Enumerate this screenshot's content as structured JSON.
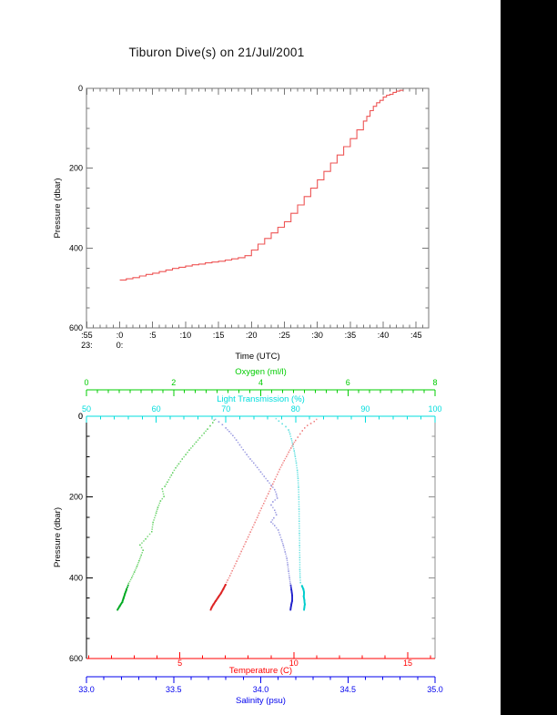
{
  "title": "Tiburon Dive(s) on 21/Jul/2001",
  "colors": {
    "background": "#ffffff",
    "right_band": "#000000",
    "frame": "#777777",
    "right_spine": "#909090",
    "text": "#000000",
    "profile_line": "#ee5555",
    "oxygen_text": "#00cc00",
    "oxygen_dot": "#55cc55",
    "oxygen_dark": "#00aa22",
    "transmission_text": "#00dddd",
    "transmission_dot": "#55dddd",
    "transmission_dark": "#00cccc",
    "temperature_text": "#ff0000",
    "temperature_dot": "#ee7777",
    "temperature_dark": "#dd2222",
    "salinity_text": "#0000ee",
    "salinity_dot": "#9090dd",
    "salinity_dark": "#2222cc"
  },
  "chart_data": [
    {
      "type": "line",
      "name": "dive-pressure-vs-time",
      "xlabel": "Time (UTC)",
      "ylabel": "Pressure (dbar)",
      "xlim": [
        -5.05,
        46.9
      ],
      "ylim": [
        0,
        600
      ],
      "x_ticks": [
        {
          "minute": -5,
          "label": ":55"
        },
        {
          "minute": 0,
          "label": ":0"
        },
        {
          "minute": 5,
          "label": ":5"
        },
        {
          "minute": 10,
          "label": ":10"
        },
        {
          "minute": 15,
          "label": ":15"
        },
        {
          "minute": 20,
          "label": ":20"
        },
        {
          "minute": 25,
          "label": ":25"
        },
        {
          "minute": 30,
          "label": ":30"
        },
        {
          "minute": 35,
          "label": ":35"
        },
        {
          "minute": 40,
          "label": ":40"
        },
        {
          "minute": 45,
          "label": ":45"
        }
      ],
      "x_hour_labels": [
        {
          "minute": -5,
          "label": "23:"
        },
        {
          "minute": 0,
          "label": "0:"
        }
      ],
      "x_minor_step": 1,
      "y_ticks": [
        {
          "value": 0,
          "label": "0"
        },
        {
          "value": 200,
          "label": "200"
        },
        {
          "value": 400,
          "label": "400"
        },
        {
          "value": 600,
          "label": "600"
        }
      ],
      "y_minor_step": 50,
      "series": [
        {
          "name": "pressure-profile",
          "style": "steps",
          "points_time_pressure": [
            [
              0,
              480
            ],
            [
              1,
              477
            ],
            [
              2,
              474
            ],
            [
              3,
              470
            ],
            [
              4,
              466
            ],
            [
              5,
              463
            ],
            [
              6,
              459
            ],
            [
              7,
              455
            ],
            [
              8,
              451
            ],
            [
              9,
              448
            ],
            [
              10,
              445
            ],
            [
              11,
              442
            ],
            [
              12,
              440
            ],
            [
              13,
              437
            ],
            [
              14,
              435
            ],
            [
              15,
              433
            ],
            [
              16,
              430
            ],
            [
              17,
              427
            ],
            [
              18,
              424
            ],
            [
              19,
              419
            ],
            [
              20,
              405
            ],
            [
              21,
              390
            ],
            [
              22,
              376
            ],
            [
              23,
              362
            ],
            [
              24,
              348
            ],
            [
              25,
              334
            ],
            [
              26,
              313
            ],
            [
              27,
              292
            ],
            [
              28,
              271
            ],
            [
              29,
              250
            ],
            [
              30,
              229
            ],
            [
              31,
              208
            ],
            [
              32,
              187
            ],
            [
              33,
              167
            ],
            [
              34,
              146
            ],
            [
              35,
              126
            ],
            [
              36,
              104
            ],
            [
              37,
              82
            ],
            [
              37.5,
              70
            ],
            [
              38,
              56
            ],
            [
              38.5,
              45
            ],
            [
              39,
              36
            ],
            [
              39.5,
              30
            ],
            [
              40,
              22
            ],
            [
              40.5,
              17
            ],
            [
              41,
              15
            ],
            [
              41.5,
              10
            ],
            [
              42,
              7
            ],
            [
              42.5,
              5
            ],
            [
              43,
              4
            ]
          ]
        }
      ]
    },
    {
      "type": "scatter",
      "name": "ctd-profiles-vs-pressure",
      "ylabel": "Pressure (dbar)",
      "ylim": [
        0,
        600
      ],
      "y_ticks": [
        {
          "value": 0,
          "label": "0"
        },
        {
          "value": 200,
          "label": "200"
        },
        {
          "value": 400,
          "label": "400"
        },
        {
          "value": 600,
          "label": "600"
        }
      ],
      "y_minor_step": 50,
      "axes": [
        {
          "id": "oxygen",
          "label": "Oxygen (ml/l)",
          "lim": [
            0,
            8
          ],
          "major_ticks": [
            {
              "value": 0,
              "label": "0"
            },
            {
              "value": 2,
              "label": "2"
            },
            {
              "value": 4,
              "label": "4"
            },
            {
              "value": 6,
              "label": "6"
            },
            {
              "value": 8,
              "label": "8"
            }
          ],
          "minor_step": 0.25
        },
        {
          "id": "transmission",
          "label": "Light Transmission (%)",
          "lim": [
            50,
            100
          ],
          "major_ticks": [
            {
              "value": 50,
              "label": "50"
            },
            {
              "value": 60,
              "label": "60"
            },
            {
              "value": 70,
              "label": "70"
            },
            {
              "value": 80,
              "label": "80"
            },
            {
              "value": 90,
              "label": "90"
            },
            {
              "value": 100,
              "label": "100"
            }
          ],
          "minor_step": 2
        },
        {
          "id": "temperature",
          "label": "Temperature (C)",
          "lim": [
            0.9,
            16.2
          ],
          "major_ticks": [
            {
              "value": 5,
              "label": "5"
            },
            {
              "value": 10,
              "label": "10"
            },
            {
              "value": 15,
              "label": "15"
            }
          ],
          "minor_step": 1
        },
        {
          "id": "salinity",
          "label": "Salinity (psu)",
          "lim": [
            33.0,
            35.0
          ],
          "major_ticks": [
            {
              "value": 33.0,
              "label": "33.0"
            },
            {
              "value": 33.5,
              "label": "33.5"
            },
            {
              "value": 34.0,
              "label": "34.0"
            },
            {
              "value": 34.5,
              "label": "34.5"
            },
            {
              "value": 35.0,
              "label": "35.0"
            }
          ],
          "minor_step": 0.1
        }
      ],
      "series": [
        {
          "name": "oxygen",
          "axis": "oxygen",
          "points_value_pressure": [
            [
              2.93,
              10
            ],
            [
              2.9,
              16
            ],
            [
              2.84,
              24
            ],
            [
              2.78,
              32
            ],
            [
              2.7,
              42
            ],
            [
              2.6,
              54
            ],
            [
              2.52,
              64
            ],
            [
              2.44,
              74
            ],
            [
              2.36,
              84
            ],
            [
              2.28,
              95
            ],
            [
              2.2,
              106
            ],
            [
              2.12,
              118
            ],
            [
              2.05,
              128
            ],
            [
              1.98,
              140
            ],
            [
              1.95,
              146
            ],
            [
              1.86,
              163
            ],
            [
              1.8,
              174
            ],
            [
              1.74,
              180
            ],
            [
              1.78,
              199
            ],
            [
              1.7,
              210
            ],
            [
              1.64,
              226
            ],
            [
              1.6,
              240
            ],
            [
              1.53,
              263
            ],
            [
              1.5,
              286
            ],
            [
              1.36,
              304
            ],
            [
              1.23,
              319
            ],
            [
              1.3,
              332
            ],
            [
              1.26,
              344
            ],
            [
              1.21,
              358
            ],
            [
              1.16,
              372
            ],
            [
              1.1,
              386
            ],
            [
              1.04,
              400
            ],
            [
              0.97,
              414
            ],
            [
              0.92,
              428
            ],
            [
              0.88,
              440
            ],
            [
              0.85,
              450
            ],
            [
              0.82,
              460
            ],
            [
              0.76,
              470
            ],
            [
              0.71,
              479
            ]
          ]
        },
        {
          "name": "light-transmission",
          "axis": "transmission",
          "points_value_pressure": [
            [
              77.2,
              6
            ],
            [
              77.6,
              12
            ],
            [
              78.1,
              19
            ],
            [
              78.6,
              26
            ],
            [
              79.0,
              34
            ],
            [
              79.2,
              44
            ],
            [
              79.4,
              56
            ],
            [
              79.6,
              70
            ],
            [
              79.8,
              86
            ],
            [
              79.95,
              100
            ],
            [
              80.1,
              116
            ],
            [
              80.25,
              134
            ],
            [
              80.35,
              154
            ],
            [
              80.42,
              176
            ],
            [
              80.47,
              200
            ],
            [
              80.5,
              230
            ],
            [
              80.52,
              260
            ],
            [
              80.55,
              290
            ],
            [
              80.58,
              320
            ],
            [
              80.6,
              350
            ],
            [
              80.62,
              380
            ],
            [
              80.65,
              400
            ],
            [
              80.7,
              412
            ],
            [
              80.9,
              420
            ],
            [
              81.1,
              428
            ],
            [
              81.2,
              436
            ],
            [
              81.15,
              446
            ],
            [
              81.25,
              456
            ],
            [
              81.3,
              466
            ],
            [
              81.2,
              479
            ]
          ]
        },
        {
          "name": "temperature",
          "axis": "temperature",
          "points_value_pressure": [
            [
              11.0,
              8
            ],
            [
              10.9,
              13
            ],
            [
              10.75,
              18
            ],
            [
              10.6,
              23
            ],
            [
              10.48,
              29
            ],
            [
              10.38,
              36
            ],
            [
              10.28,
              44
            ],
            [
              10.18,
              52
            ],
            [
              10.08,
              60
            ],
            [
              9.98,
              69
            ],
            [
              9.88,
              79
            ],
            [
              9.78,
              89
            ],
            [
              9.68,
              100
            ],
            [
              9.58,
              110
            ],
            [
              9.48,
              121
            ],
            [
              9.38,
              132
            ],
            [
              9.28,
              144
            ],
            [
              9.18,
              156
            ],
            [
              9.08,
              168
            ],
            [
              8.98,
              180
            ],
            [
              8.88,
              192
            ],
            [
              8.78,
              204
            ],
            [
              8.68,
              216
            ],
            [
              8.58,
              228
            ],
            [
              8.48,
              240
            ],
            [
              8.4,
              251
            ],
            [
              8.3,
              263
            ],
            [
              8.2,
              275
            ],
            [
              8.1,
              287
            ],
            [
              8.0,
              299
            ],
            [
              7.9,
              311
            ],
            [
              7.8,
              323
            ],
            [
              7.7,
              335
            ],
            [
              7.6,
              347
            ],
            [
              7.5,
              359
            ],
            [
              7.4,
              371
            ],
            [
              7.3,
              383
            ],
            [
              7.2,
              395
            ],
            [
              7.1,
              406
            ],
            [
              7.0,
              417
            ],
            [
              6.9,
              428
            ],
            [
              6.8,
              438
            ],
            [
              6.68,
              448
            ],
            [
              6.56,
              458
            ],
            [
              6.47,
              466
            ],
            [
              6.4,
              472
            ],
            [
              6.35,
              479
            ]
          ]
        },
        {
          "name": "salinity",
          "axis": "salinity",
          "points_value_pressure": [
            [
              33.74,
              8
            ],
            [
              33.76,
              14
            ],
            [
              33.78,
              21
            ],
            [
              33.8,
              29
            ],
            [
              33.82,
              38
            ],
            [
              33.84,
              48
            ],
            [
              33.86,
              59
            ],
            [
              33.88,
              71
            ],
            [
              33.9,
              83
            ],
            [
              33.92,
              95
            ],
            [
              33.94,
              106
            ],
            [
              33.96,
              116
            ],
            [
              33.98,
              127
            ],
            [
              34.0,
              138
            ],
            [
              34.02,
              149
            ],
            [
              34.04,
              160
            ],
            [
              34.06,
              171
            ],
            [
              34.08,
              182
            ],
            [
              34.09,
              193
            ],
            [
              34.095,
              203
            ],
            [
              34.07,
              212
            ],
            [
              34.06,
              220
            ],
            [
              34.08,
              233
            ],
            [
              34.09,
              244
            ],
            [
              34.075,
              252
            ],
            [
              34.06,
              262
            ],
            [
              34.08,
              271
            ],
            [
              34.1,
              282
            ],
            [
              34.11,
              294
            ],
            [
              34.12,
              306
            ],
            [
              34.13,
              320
            ],
            [
              34.14,
              336
            ],
            [
              34.15,
              352
            ],
            [
              34.155,
              368
            ],
            [
              34.16,
              384
            ],
            [
              34.165,
              400
            ],
            [
              34.17,
              414
            ],
            [
              34.175,
              428
            ],
            [
              34.18,
              444
            ],
            [
              34.18,
              456
            ],
            [
              34.175,
              466
            ],
            [
              34.17,
              479
            ]
          ]
        }
      ]
    }
  ],
  "layout_note_black_band_left": 550
}
